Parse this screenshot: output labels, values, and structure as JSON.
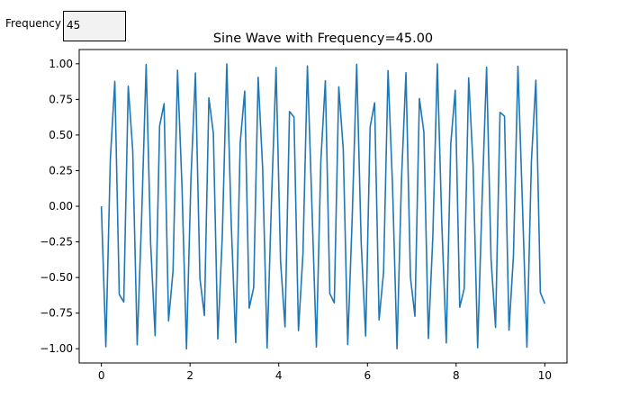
{
  "widget": {
    "label": "Frequency",
    "value": "45"
  },
  "chart_data": {
    "type": "line",
    "title": "Sine Wave with Frequency=45.00",
    "xlabel": "",
    "ylabel": "",
    "xlim": [
      -0.5,
      10.5
    ],
    "ylim": [
      -1.1,
      1.1
    ],
    "grid": false,
    "line_color": "#1f77b4",
    "xticks": [
      "0",
      "2",
      "4",
      "6",
      "8",
      "10"
    ],
    "yticks": [
      "-1.00",
      "-0.75",
      "-0.50",
      "-0.25",
      "0.00",
      "0.25",
      "0.50",
      "0.75",
      "1.00"
    ],
    "x": {
      "start": 0,
      "stop": 10,
      "num": 100
    },
    "y": [
      0,
      -0.986,
      0.329,
      0.877,
      -0.619,
      -0.672,
      0.843,
      0.392,
      -0.972,
      -0.068,
      0.995,
      -0.262,
      -0.908,
      0.564,
      0.72,
      -0.804,
      -0.454,
      0.954,
      0.137,
      -1.0,
      0.196,
      0.935,
      -0.506,
      -0.767,
      0.761,
      0.513,
      -0.931,
      -0.204,
      0.999,
      -0.128,
      -0.957,
      0.446,
      0.808,
      -0.715,
      -0.571,
      0.905,
      0.27,
      -0.994,
      0.06,
      0.974,
      -0.384,
      -0.847,
      0.665,
      0.626,
      -0.873,
      -0.336,
      0.985,
      0.008,
      -0.988,
      0.32,
      0.881,
      -0.613,
      -0.678,
      0.838,
      0.399,
      -0.97,
      -0.077,
      0.996,
      -0.254,
      -0.911,
      0.557,
      0.726,
      -0.798,
      -0.462,
      0.952,
      0.145,
      -1.0,
      0.188,
      0.938,
      -0.499,
      -0.772,
      0.756,
      0.521,
      -0.928,
      -0.212,
      0.999,
      -0.12,
      -0.959,
      0.439,
      0.814,
      -0.709,
      -0.578,
      0.901,
      0.278,
      -0.993,
      0.052,
      0.976,
      -0.376,
      -0.851,
      0.659,
      0.632,
      -0.869,
      -0.344,
      0.983,
      0.017,
      -0.989,
      0.312,
      0.885,
      -0.606,
      -0.684
    ]
  }
}
